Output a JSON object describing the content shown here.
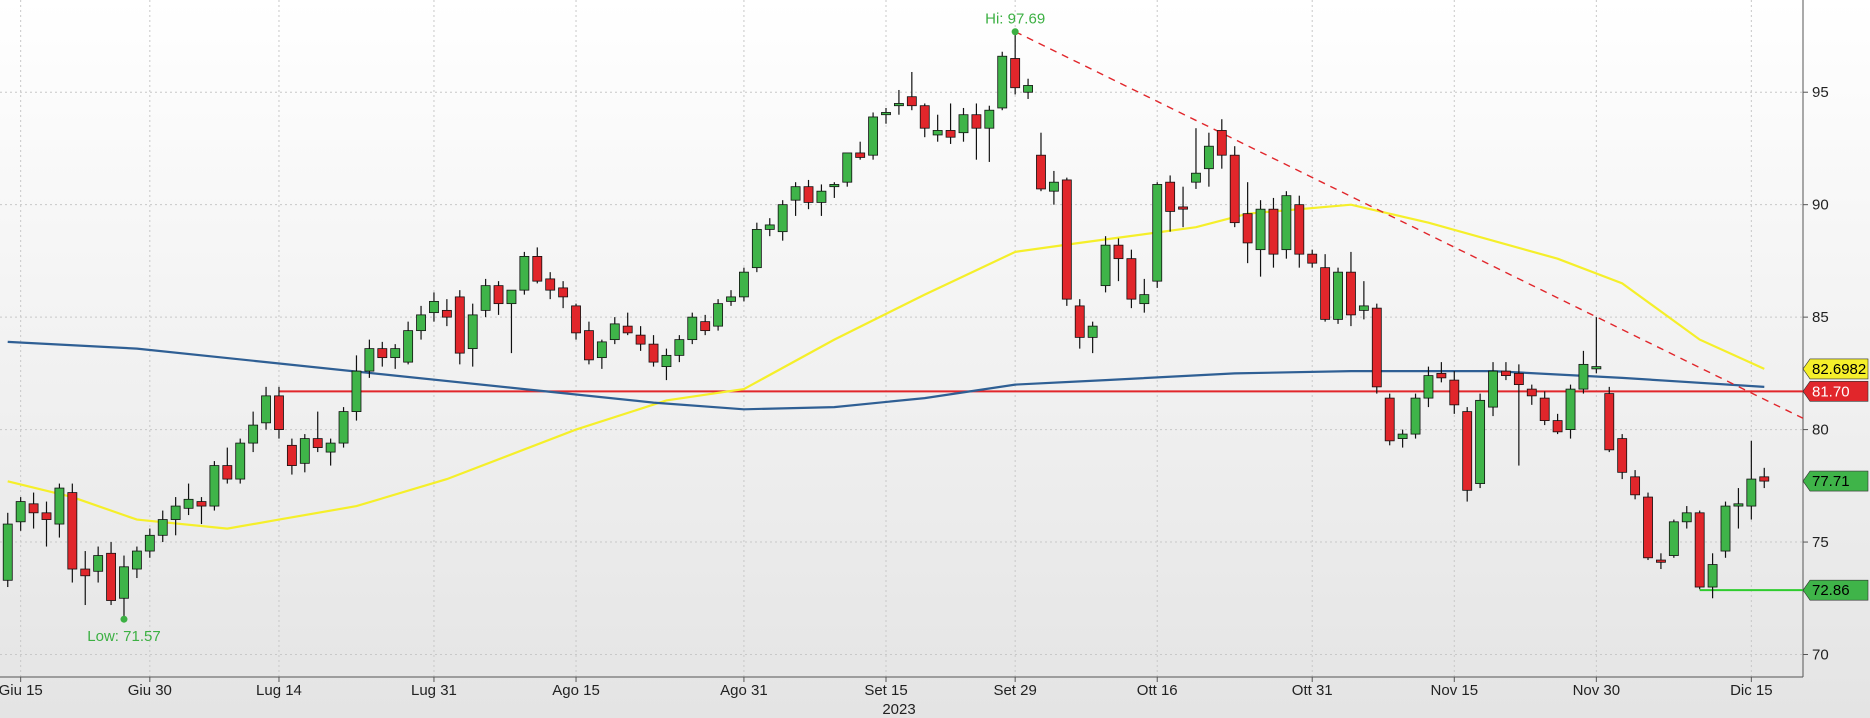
{
  "chart_data": {
    "type": "candlestick",
    "year_label": "2023",
    "categories": [
      null,
      "Giu 15",
      null,
      null,
      null,
      null,
      null,
      null,
      null,
      null,
      null,
      "Giu 30",
      null,
      null,
      null,
      null,
      null,
      null,
      null,
      null,
      null,
      "Lug 14",
      null,
      null,
      null,
      null,
      null,
      null,
      null,
      null,
      null,
      null,
      null,
      "Lug 31",
      null,
      null,
      null,
      null,
      null,
      null,
      null,
      null,
      null,
      null,
      "Ago 15",
      null,
      null,
      null,
      null,
      null,
      null,
      null,
      null,
      null,
      null,
      null,
      null,
      "Ago 31",
      null,
      null,
      null,
      null,
      null,
      null,
      null,
      null,
      null,
      null,
      "Set 15",
      null,
      null,
      null,
      null,
      null,
      null,
      null,
      null,
      null,
      "Set 29",
      null,
      null,
      null,
      null,
      null,
      null,
      null,
      null,
      null,
      null,
      "Ott 16",
      null,
      null,
      null,
      null,
      null,
      null,
      null,
      null,
      null,
      null,
      null,
      "Ott 31",
      null,
      null,
      null,
      null,
      null,
      null,
      null,
      null,
      null,
      null,
      "Nov 15",
      null,
      null,
      null,
      null,
      null,
      null,
      null,
      null,
      null,
      null,
      "Nov 30",
      null,
      null,
      null,
      null,
      null,
      null,
      null,
      null,
      null,
      null,
      null,
      "Dic 15",
      null
    ],
    "open": [
      73.3,
      75.9,
      76.7,
      76.3,
      75.8,
      77.2,
      73.8,
      73.7,
      74.5,
      72.5,
      73.8,
      74.6,
      75.3,
      76.0,
      76.5,
      76.8,
      76.6,
      78.4,
      77.8,
      79.4,
      80.3,
      81.5,
      79.3,
      78.5,
      79.6,
      79.0,
      79.4,
      80.8,
      82.6,
      83.6,
      83.2,
      83.0,
      84.4,
      85.2,
      85.3,
      85.9,
      83.6,
      85.3,
      86.4,
      85.6,
      86.2,
      87.7,
      86.7,
      86.3,
      85.5,
      84.4,
      83.2,
      84.0,
      84.6,
      84.2,
      83.8,
      82.8,
      83.3,
      84.0,
      84.8,
      84.6,
      85.7,
      85.9,
      87.2,
      88.9,
      88.8,
      90.2,
      90.8,
      90.1,
      90.8,
      91.0,
      92.3,
      92.2,
      94.0,
      94.4,
      94.8,
      94.4,
      93.1,
      93.3,
      93.2,
      94.0,
      93.4,
      94.3,
      96.5,
      95.0,
      92.2,
      90.6,
      91.1,
      85.5,
      84.1,
      86.4,
      88.2,
      87.6,
      85.6,
      86.6,
      91.0,
      89.9,
      91.0,
      91.6,
      93.3,
      92.2,
      89.6,
      88.0,
      89.8,
      88.0,
      90.0,
      87.8,
      87.2,
      84.9,
      87.0,
      85.3,
      85.4,
      81.4,
      79.6,
      79.8,
      81.4,
      82.5,
      82.2,
      80.8,
      77.6,
      81.0,
      82.6,
      82.5,
      81.8,
      81.4,
      80.4,
      80.0,
      81.8,
      82.7,
      81.6,
      79.6,
      77.9,
      77.0,
      74.2,
      74.4,
      75.9,
      76.3,
      73.0,
      74.6,
      76.6,
      76.6,
      77.9
    ],
    "high": [
      76.3,
      77.0,
      77.2,
      76.8,
      77.6,
      77.6,
      74.6,
      74.8,
      75.0,
      74.4,
      74.8,
      75.6,
      76.4,
      77.0,
      77.6,
      77.0,
      78.6,
      79.2,
      79.6,
      80.8,
      81.9,
      81.9,
      79.6,
      79.8,
      80.8,
      79.6,
      81.0,
      83.3,
      84.0,
      83.9,
      83.8,
      84.8,
      85.5,
      86.1,
      85.8,
      86.2,
      85.6,
      86.7,
      86.6,
      86.2,
      87.9,
      88.1,
      87.0,
      86.6,
      85.6,
      84.8,
      84.0,
      85.0,
      85.2,
      84.6,
      84.2,
      83.6,
      84.2,
      85.2,
      85.1,
      85.8,
      86.2,
      87.2,
      89.2,
      89.4,
      90.2,
      91.0,
      91.1,
      90.9,
      91.0,
      92.3,
      92.8,
      94.1,
      94.3,
      95.1,
      95.9,
      94.5,
      94.0,
      94.5,
      94.3,
      94.5,
      94.4,
      96.8,
      97.69,
      95.6,
      93.2,
      91.5,
      91.2,
      85.8,
      84.8,
      88.6,
      88.5,
      88.0,
      86.7,
      91.0,
      91.3,
      90.8,
      93.4,
      93.2,
      93.8,
      92.6,
      91.0,
      90.2,
      90.3,
      90.6,
      90.4,
      88.0,
      87.8,
      87.2,
      87.9,
      86.6,
      85.6,
      81.6,
      80.0,
      81.6,
      82.8,
      83.0,
      82.6,
      81.0,
      81.6,
      83.0,
      83.0,
      82.9,
      82.0,
      81.7,
      80.7,
      82.0,
      83.5,
      85.0,
      81.9,
      79.8,
      78.2,
      77.2,
      74.5,
      76.0,
      76.6,
      76.4,
      74.5,
      76.8,
      77.4,
      79.5,
      78.3
    ],
    "low": [
      73.0,
      75.5,
      75.6,
      74.8,
      75.2,
      73.2,
      72.2,
      73.2,
      72.2,
      71.57,
      73.4,
      74.3,
      75.0,
      75.3,
      76.2,
      75.8,
      76.4,
      77.6,
      77.6,
      79.0,
      80.0,
      79.6,
      78.0,
      78.1,
      79.0,
      78.4,
      79.2,
      80.4,
      82.3,
      82.8,
      82.7,
      82.9,
      84.0,
      84.8,
      84.6,
      82.9,
      82.8,
      85.0,
      85.1,
      83.4,
      86.0,
      86.5,
      85.8,
      85.4,
      84.0,
      82.9,
      82.7,
      83.8,
      84.2,
      83.5,
      82.8,
      82.2,
      83.0,
      83.8,
      84.2,
      84.4,
      85.5,
      85.7,
      87.0,
      88.6,
      88.4,
      89.5,
      89.8,
      89.5,
      90.3,
      90.8,
      92.0,
      92.0,
      93.6,
      94.0,
      94.2,
      93.0,
      92.8,
      92.7,
      92.8,
      92.0,
      91.9,
      94.2,
      94.9,
      94.7,
      90.6,
      90.0,
      85.5,
      83.6,
      83.4,
      86.1,
      86.6,
      85.4,
      85.2,
      86.3,
      88.8,
      89.0,
      90.7,
      90.8,
      91.6,
      89.0,
      87.4,
      86.8,
      87.2,
      87.6,
      87.2,
      87.2,
      84.8,
      84.7,
      84.6,
      84.9,
      81.6,
      79.3,
      79.2,
      79.6,
      81.0,
      82.1,
      80.7,
      76.8,
      77.4,
      80.6,
      82.2,
      78.4,
      81.1,
      80.2,
      79.8,
      79.6,
      81.6,
      82.5,
      79.0,
      77.8,
      76.9,
      74.2,
      73.8,
      74.3,
      75.6,
      72.9,
      72.5,
      74.3,
      75.6,
      76.0,
      77.4
    ],
    "close": [
      75.8,
      76.8,
      76.3,
      76.0,
      77.4,
      73.8,
      73.5,
      74.4,
      72.4,
      73.9,
      74.6,
      75.3,
      76.0,
      76.6,
      76.9,
      76.6,
      78.4,
      77.8,
      79.4,
      80.2,
      81.5,
      80.0,
      78.4,
      79.6,
      79.2,
      79.4,
      80.8,
      82.6,
      83.6,
      83.2,
      83.6,
      84.4,
      85.1,
      85.7,
      85.0,
      83.4,
      85.1,
      86.4,
      85.6,
      86.2,
      87.7,
      86.6,
      86.2,
      85.9,
      84.3,
      83.1,
      83.9,
      84.7,
      84.3,
      83.8,
      83.0,
      83.3,
      84.0,
      85.0,
      84.4,
      85.6,
      85.9,
      87.0,
      88.9,
      89.1,
      90.0,
      90.8,
      90.1,
      90.6,
      90.9,
      92.3,
      92.1,
      93.9,
      94.1,
      94.5,
      94.4,
      93.4,
      93.3,
      93.0,
      94.0,
      93.4,
      94.2,
      96.6,
      95.2,
      95.3,
      90.7,
      91.0,
      85.8,
      84.1,
      84.6,
      88.2,
      87.6,
      85.8,
      86.0,
      90.9,
      89.7,
      89.8,
      91.4,
      92.6,
      92.2,
      89.2,
      88.3,
      89.8,
      87.8,
      90.4,
      87.8,
      87.4,
      84.9,
      87.0,
      85.1,
      85.5,
      81.9,
      79.5,
      79.8,
      81.4,
      82.4,
      82.3,
      81.1,
      77.3,
      81.3,
      82.6,
      82.4,
      82.0,
      81.5,
      80.4,
      79.9,
      81.8,
      82.9,
      82.8,
      79.1,
      78.1,
      77.1,
      74.3,
      74.1,
      75.9,
      76.3,
      73.0,
      74.0,
      76.6,
      76.7,
      77.8,
      77.71
    ],
    "up_color": "#3fb449",
    "down_color": "#e1262b",
    "lines": [
      {
        "color": "#f5ef2a",
        "x": [
          0,
          5,
          10,
          17,
          21,
          27,
          34,
          44,
          51,
          57,
          64,
          71,
          78,
          83,
          92,
          96,
          104,
          110,
          120,
          125,
          131,
          136
        ],
        "values": [
          77.7,
          77.0,
          76.0,
          75.6,
          76.0,
          76.6,
          77.8,
          80.0,
          81.3,
          81.8,
          84.0,
          86.0,
          87.9,
          88.3,
          89.0,
          89.6,
          90.0,
          89.2,
          87.6,
          86.5,
          84.0,
          82.7
        ]
      },
      {
        "color": "#2f5f94",
        "x": [
          0,
          10,
          20,
          30,
          40,
          50,
          57,
          64,
          71,
          78,
          85,
          95,
          104,
          115,
          125,
          136
        ],
        "values": [
          83.9,
          83.6,
          83.0,
          82.4,
          81.8,
          81.2,
          80.9,
          81.0,
          81.4,
          82.0,
          82.2,
          82.5,
          82.6,
          82.6,
          82.3,
          81.9
        ]
      },
      {
        "color": "#e1262b",
        "dashed": true,
        "x": [
          78,
          139
        ],
        "values": [
          97.69,
          80.5
        ]
      }
    ],
    "hlines": [
      {
        "value": 81.7,
        "color": "#e1262b",
        "from": 21
      },
      {
        "value": 72.86,
        "color": "#2ecc2e",
        "from": 131
      }
    ],
    "price_labels": [
      {
        "value": 82.6982,
        "label": "82.6982",
        "color": "#f5ef2a",
        "text_color": "#000"
      },
      {
        "value": 81.7,
        "label": "81.70",
        "color": "#e1262b",
        "text_color": "#fff"
      },
      {
        "value": 77.71,
        "label": "77.71",
        "color": "#3fb449",
        "text_color": "#000"
      },
      {
        "value": 72.86,
        "label": "72.86",
        "color": "#3fb449",
        "text_color": "#000"
      }
    ],
    "annotations": [
      {
        "text": "Hi: 97.69",
        "value": 97.69,
        "x": 78,
        "position": "above"
      },
      {
        "text": "Low: 71.57",
        "value": 71.57,
        "x": 9,
        "position": "below"
      }
    ],
    "xlim": [
      -0.6,
      139
    ],
    "ylim": [
      69,
      99.1
    ],
    "yticks": [
      70,
      75,
      80,
      85,
      90,
      95
    ],
    "grid": true
  }
}
